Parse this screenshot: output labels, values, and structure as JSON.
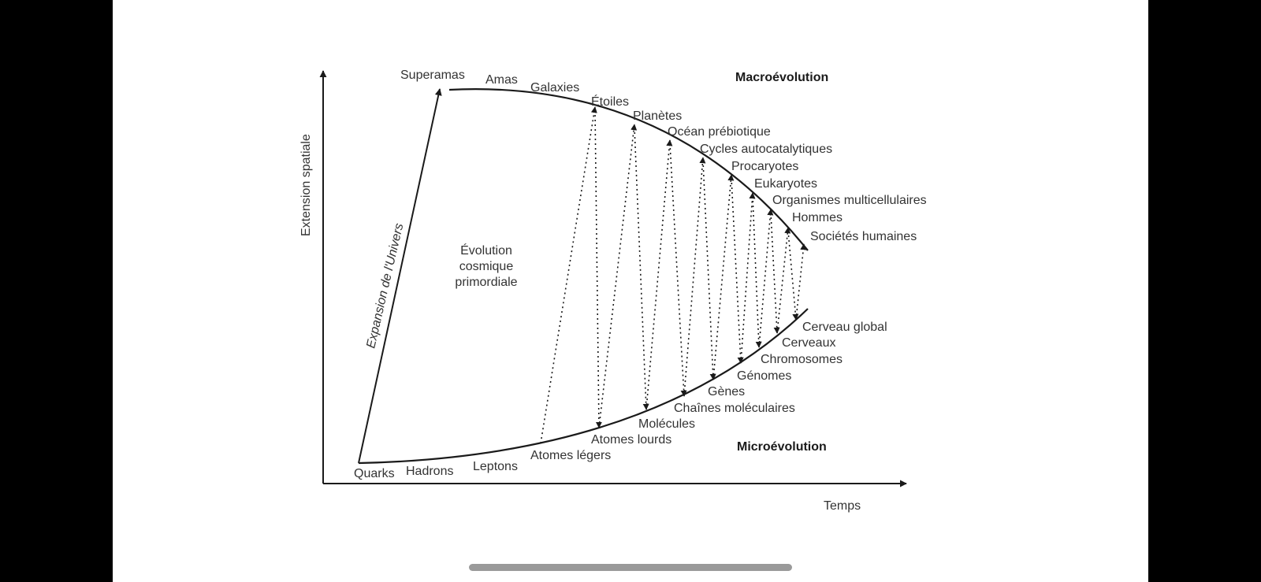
{
  "axes": {
    "y_label": "Extension spatiale",
    "x_label": "Temps"
  },
  "headings": {
    "macro": "Macroévolution",
    "micro": "Microévolution"
  },
  "side_label": "Expansion de l'Univers",
  "region_label": [
    "Évolution",
    "cosmique",
    "primordiale"
  ],
  "upper_labels": [
    "Superamas",
    "Amas",
    "Galaxies",
    "Étoiles",
    "Planètes",
    "Océan prébiotique",
    "Cycles autocatalytiques",
    "Procaryotes",
    "Eukaryotes",
    "Organismes multicellulaires",
    "Hommes",
    "Sociétés humaines"
  ],
  "lower_labels": [
    "Quarks",
    "Hadrons",
    "Leptons",
    "Atomes légers",
    "Atomes lourds",
    "Molécules",
    "Chaînes moléculaires",
    "Gènes",
    "Génomes",
    "Chromosomes",
    "Cerveaux",
    "Cerveau global"
  ],
  "colors": {
    "background": "#000000",
    "panel": "#ffffff",
    "ink": "#1a1a1a",
    "home_indicator": "#9a9a9a"
  }
}
